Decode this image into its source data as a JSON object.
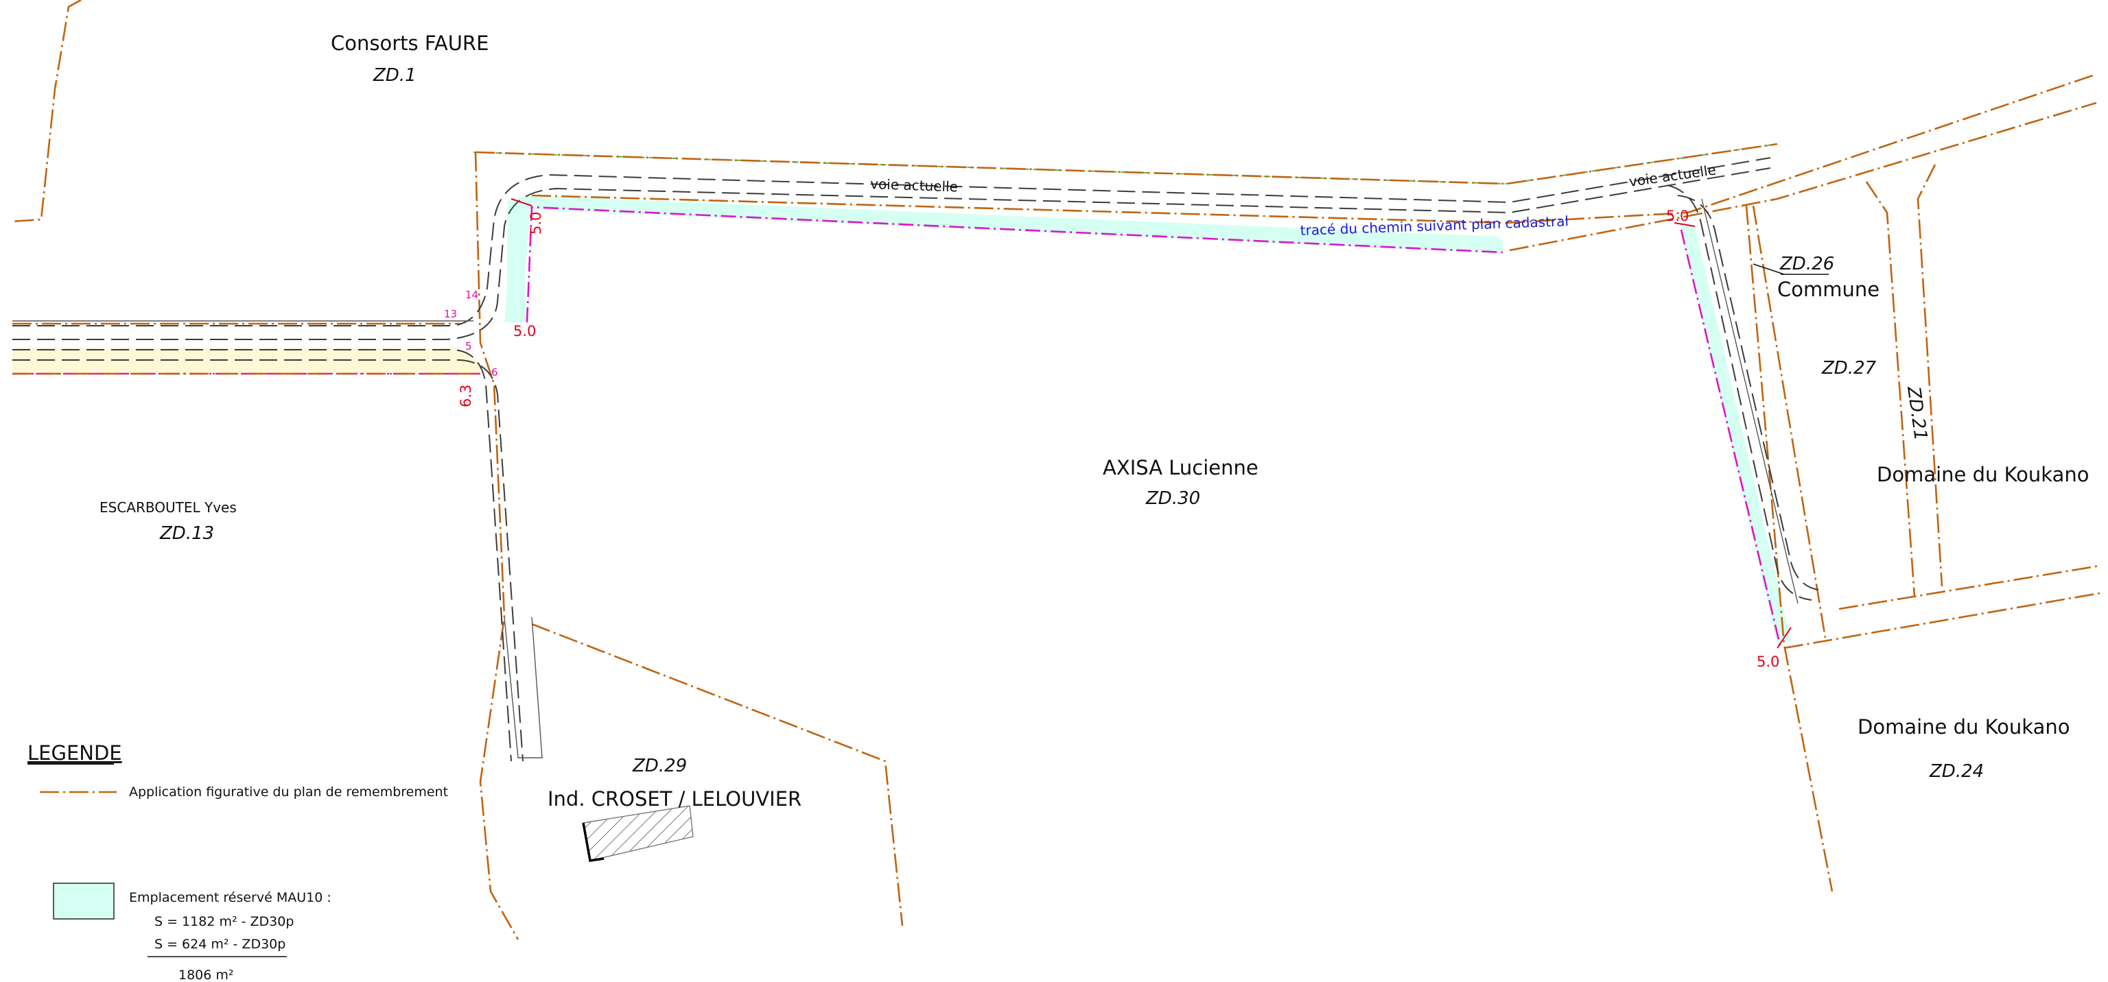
{
  "owners": {
    "consorts_faure": "Consorts FAURE",
    "zd1": "ZD.1",
    "escarboutel": "ESCARBOUTEL Yves",
    "zd13": "ZD.13",
    "axisa": "AXISA Lucienne",
    "zd30": "ZD.30",
    "zd29": "ZD.29",
    "croset": "Ind. CROSET / LELOUVIER",
    "zd26": "ZD.26",
    "commune": "Commune",
    "zd27": "ZD.27",
    "zd21": "ZD.21",
    "koukano_1": "Domaine du Koukano",
    "koukano_2": "Domaine du Koukano",
    "zd24": "ZD.24"
  },
  "annotations": {
    "voie_left": "voie  actuelle",
    "voie_right": "voie  actuelle",
    "trace": "tracé du chemin suivant plan cadastral",
    "dim_top_left": "5.0",
    "dim_mid_left": "5.0",
    "dim_63": "6.3",
    "dim_top_right": "5.0",
    "dim_bottom_right": "5.0",
    "pt_13": "13",
    "pt_14": "14",
    "pt_5": "5",
    "pt_6": "6"
  },
  "legend": {
    "title": "LEGENDE",
    "line_label": "Application figurative du plan de remembrement",
    "area_label": "Emplacement réservé MAU10 :",
    "area_line1": "S = 1182 m² - ZD30p",
    "area_line2": "S =  624 m² - ZD30p",
    "area_total": "1806 m²"
  },
  "colors": {
    "parcel_line": "#c0640f",
    "reserved_area": "#d6fff3",
    "road_fill": "#fdf8d6",
    "dimension": "#e0001b",
    "cadastral": "#e014c8"
  }
}
